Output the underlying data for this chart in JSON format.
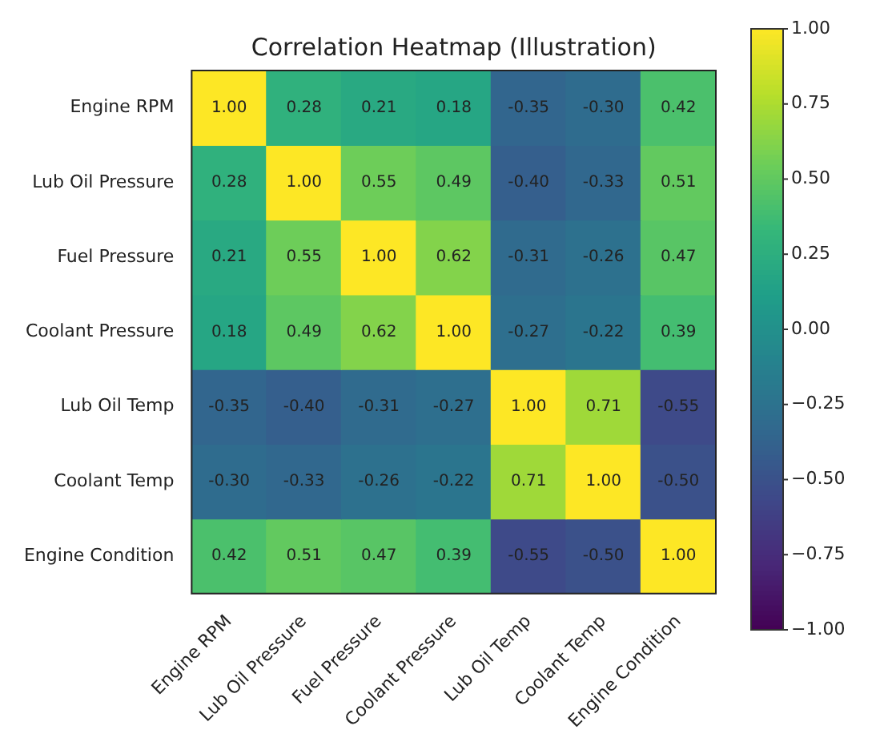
{
  "chart_data": {
    "type": "heatmap",
    "title": "Correlation Heatmap (Illustration)",
    "categories": [
      "Engine RPM",
      "Lub Oil Pressure",
      "Fuel Pressure",
      "Coolant Pressure",
      "Lub Oil Temp",
      "Coolant Temp",
      "Engine Condition"
    ],
    "y_categories": [
      "Engine RPM",
      "Lub Oil Pressure",
      "Fuel Pressure",
      "Coolant Pressure",
      "Lub Oil Temp",
      "Coolant Temp",
      "Engine Condition"
    ],
    "cells": [
      [
        1.0,
        0.28,
        0.21,
        0.18,
        -0.35,
        -0.3,
        0.42
      ],
      [
        0.28,
        1.0,
        0.55,
        0.49,
        -0.4,
        -0.33,
        0.51
      ],
      [
        0.21,
        0.55,
        1.0,
        0.62,
        -0.31,
        -0.26,
        0.47
      ],
      [
        0.18,
        0.49,
        0.62,
        1.0,
        -0.27,
        -0.22,
        0.39
      ],
      [
        -0.35,
        -0.4,
        -0.31,
        -0.27,
        1.0,
        0.71,
        -0.55
      ],
      [
        -0.3,
        -0.33,
        -0.26,
        -0.22,
        0.71,
        1.0,
        -0.5
      ],
      [
        0.42,
        0.51,
        0.47,
        0.39,
        -0.55,
        -0.5,
        1.0
      ]
    ],
    "cell_labels": [
      [
        "1.00",
        "0.28",
        "0.21",
        "0.18",
        "-0.35",
        "-0.30",
        "0.42"
      ],
      [
        "0.28",
        "1.00",
        "0.55",
        "0.49",
        "-0.40",
        "-0.33",
        "0.51"
      ],
      [
        "0.21",
        "0.55",
        "1.00",
        "0.62",
        "-0.31",
        "-0.26",
        "0.47"
      ],
      [
        "0.18",
        "0.49",
        "0.62",
        "1.00",
        "-0.27",
        "-0.22",
        "0.39"
      ],
      [
        "-0.35",
        "-0.40",
        "-0.31",
        "-0.27",
        "1.00",
        "0.71",
        "-0.55"
      ],
      [
        "-0.30",
        "-0.33",
        "-0.26",
        "-0.22",
        "0.71",
        "1.00",
        "-0.50"
      ],
      [
        "0.42",
        "0.51",
        "0.47",
        "0.39",
        "-0.55",
        "-0.50",
        "1.00"
      ]
    ],
    "clim": [
      -1,
      1
    ],
    "cticks": [
      {
        "value": 1,
        "label": "1.00"
      },
      {
        "value": 0.75,
        "label": "0.75"
      },
      {
        "value": 0.5,
        "label": "0.50"
      },
      {
        "value": 0.25,
        "label": "0.25"
      },
      {
        "value": 0,
        "label": "0.00"
      },
      {
        "value": -0.25,
        "label": "−0.25"
      },
      {
        "value": -0.5,
        "label": "−0.50"
      },
      {
        "value": -0.75,
        "label": "−0.75"
      },
      {
        "value": -1,
        "label": "−1.00"
      }
    ]
  }
}
